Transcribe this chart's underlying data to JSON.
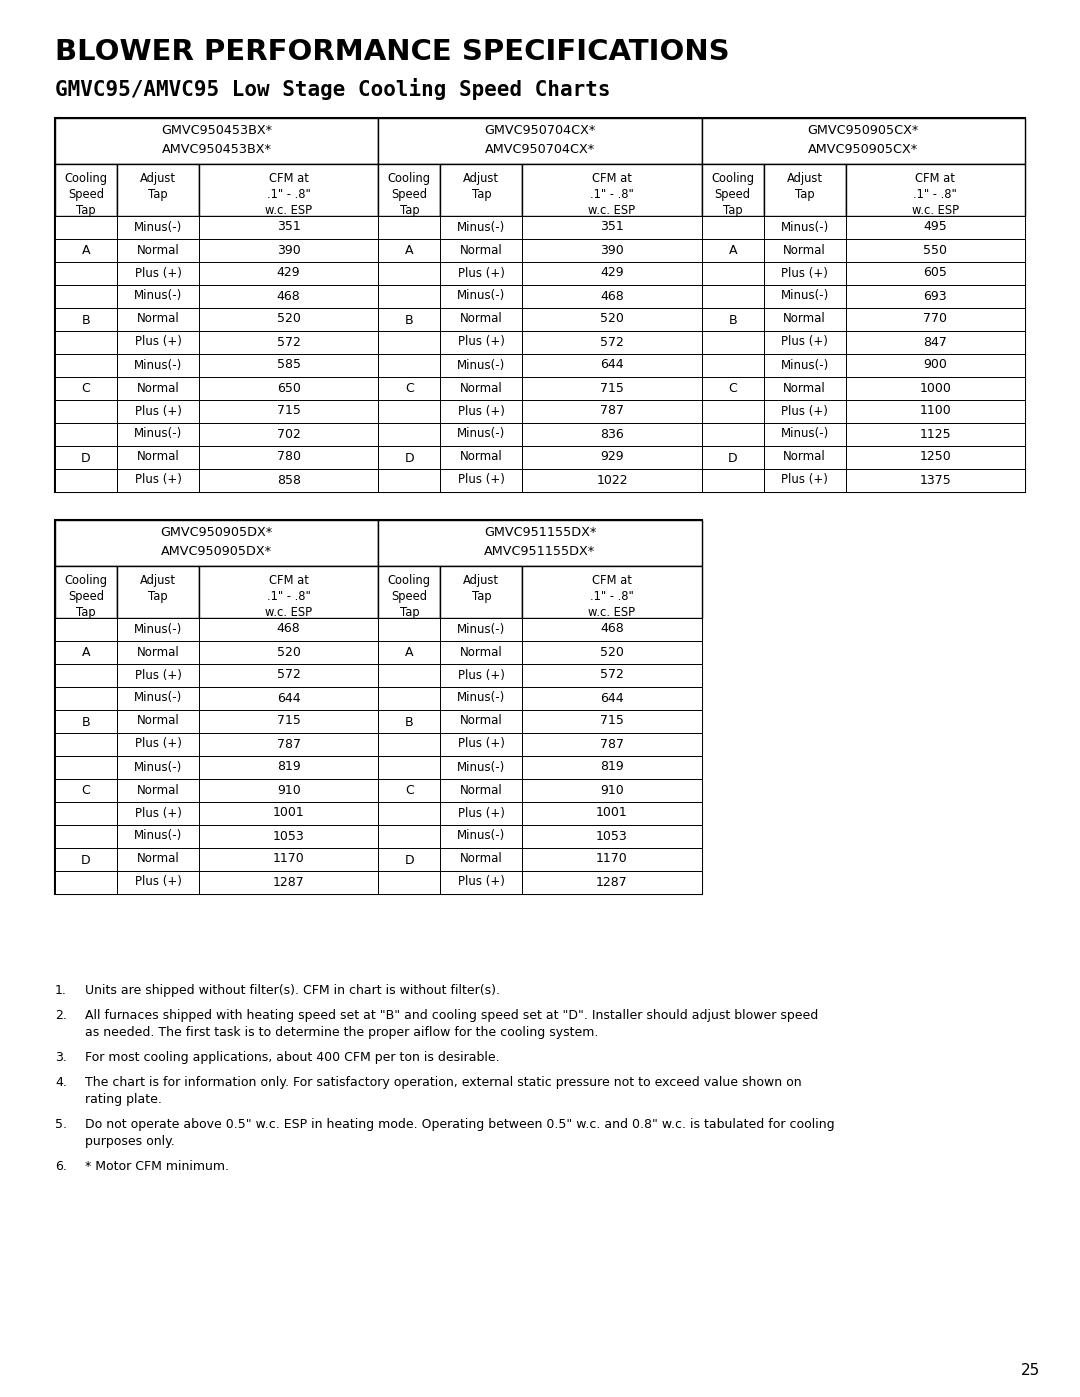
{
  "title": "BLOWER PERFORMANCE SPECIFICATIONS",
  "subtitle": "GMVC95/AMVC95 Low Stage Cooling Speed Charts",
  "table1": {
    "models": [
      [
        "GMVC950453BX*",
        "AMVC950453BX*"
      ],
      [
        "GMVC950704CX*",
        "AMVC950704CX*"
      ],
      [
        "GMVC950905CX*",
        "AMVC950905CX*"
      ]
    ],
    "rows": [
      [
        "A",
        "Minus(-)",
        351,
        "A",
        "Minus(-)",
        351,
        "A",
        "Minus(-)",
        495
      ],
      [
        "A",
        "Normal",
        390,
        "A",
        "Normal",
        390,
        "A",
        "Normal",
        550
      ],
      [
        "A",
        "Plus (+)",
        429,
        "A",
        "Plus (+)",
        429,
        "A",
        "Plus (+)",
        605
      ],
      [
        "B",
        "Minus(-)",
        468,
        "B",
        "Minus(-)",
        468,
        "B",
        "Minus(-)",
        693
      ],
      [
        "B",
        "Normal",
        520,
        "B",
        "Normal",
        520,
        "B",
        "Normal",
        770
      ],
      [
        "B",
        "Plus (+)",
        572,
        "B",
        "Plus (+)",
        572,
        "B",
        "Plus (+)",
        847
      ],
      [
        "C",
        "Minus(-)",
        585,
        "C",
        "Minus(-)",
        644,
        "C",
        "Minus(-)",
        900
      ],
      [
        "C",
        "Normal",
        650,
        "C",
        "Normal",
        715,
        "C",
        "Normal",
        1000
      ],
      [
        "C",
        "Plus (+)",
        715,
        "C",
        "Plus (+)",
        787,
        "C",
        "Plus (+)",
        1100
      ],
      [
        "D",
        "Minus(-)",
        702,
        "D",
        "Minus(-)",
        836,
        "D",
        "Minus(-)",
        1125
      ],
      [
        "D",
        "Normal",
        780,
        "D",
        "Normal",
        929,
        "D",
        "Normal",
        1250
      ],
      [
        "D",
        "Plus (+)",
        858,
        "D",
        "Plus (+)",
        1022,
        "D",
        "Plus (+)",
        1375
      ]
    ]
  },
  "table2": {
    "models": [
      [
        "GMVC950905DX*",
        "AMVC950905DX*"
      ],
      [
        "GMVC951155DX*",
        "AMVC951155DX*"
      ]
    ],
    "rows": [
      [
        "A",
        "Minus(-)",
        468,
        "A",
        "Minus(-)",
        468
      ],
      [
        "A",
        "Normal",
        520,
        "A",
        "Normal",
        520
      ],
      [
        "A",
        "Plus (+)",
        572,
        "A",
        "Plus (+)",
        572
      ],
      [
        "B",
        "Minus(-)",
        644,
        "B",
        "Minus(-)",
        644
      ],
      [
        "B",
        "Normal",
        715,
        "B",
        "Normal",
        715
      ],
      [
        "B",
        "Plus (+)",
        787,
        "B",
        "Plus (+)",
        787
      ],
      [
        "C",
        "Minus(-)",
        819,
        "C",
        "Minus(-)",
        819
      ],
      [
        "C",
        "Normal",
        910,
        "C",
        "Normal",
        910
      ],
      [
        "C",
        "Plus (+)",
        1001,
        "C",
        "Plus (+)",
        1001
      ],
      [
        "D",
        "Minus(-)",
        1053,
        "D",
        "Minus(-)",
        1053
      ],
      [
        "D",
        "Normal",
        1170,
        "D",
        "Normal",
        1170
      ],
      [
        "D",
        "Plus (+)",
        1287,
        "D",
        "Plus (+)",
        1287
      ]
    ]
  },
  "notes": [
    "Units are shipped without filter(s). CFM in chart is without filter(s).",
    "All furnaces shipped with heating speed set at \"B\" and cooling speed set at \"D\". Installer should adjust blower speed as needed. The first task is to determine the proper aiflow for the cooling system.",
    "For most cooling applications, about 400 CFM per ton is desirable.",
    "The chart is for information only. For satisfactory operation, external static pressure not to exceed value shown on rating plate.",
    "Do not operate above 0.5\" w.c. ESP in heating mode. Operating between 0.5\" w.c. and 0.8\" w.c. is tabulated for cooling purposes only.",
    "* Motor CFM minimum."
  ],
  "page_number": "25",
  "bg_color": "#ffffff",
  "text_color": "#000000"
}
